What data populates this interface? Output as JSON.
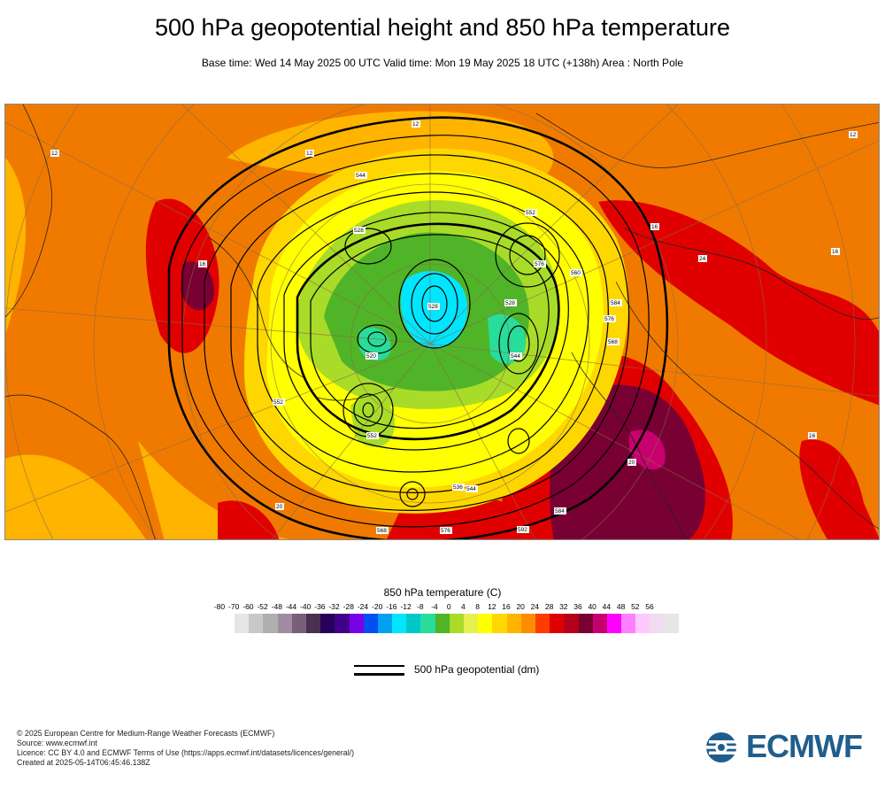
{
  "header": {
    "title": "500 hPa geopotential height and 850 hPa temperature",
    "subtitle": "Base time: Wed 14 May 2025 00 UTC Valid time: Mon 19 May 2025 18 UTC (+138h) Area : North Pole"
  },
  "map": {
    "projection": "polar stereographic",
    "area": "North Pole",
    "contour_labels": [
      "12",
      "12",
      "12",
      "544",
      "528",
      "552",
      "576",
      "528",
      "560",
      "528",
      "544",
      "552",
      "520",
      "576",
      "552",
      "536",
      "544",
      "16",
      "568",
      "16",
      "24",
      "16",
      "16",
      "568",
      "576",
      "592",
      "584",
      "20",
      "20",
      "584",
      "12"
    ]
  },
  "legend": {
    "temperature": {
      "title": "850 hPa temperature (C)",
      "labels": [
        "-80",
        "-70",
        "-60",
        "-52",
        "-48",
        "-44",
        "-40",
        "-36",
        "-32",
        "-28",
        "-24",
        "-20",
        "-16",
        "-12",
        "-8",
        "-4",
        "0",
        "4",
        "8",
        "12",
        "16",
        "20",
        "24",
        "28",
        "32",
        "36",
        "40",
        "44",
        "48",
        "52",
        "56"
      ],
      "colors": [
        "#e6e6e6",
        "#c8c8c8",
        "#afafaf",
        "#a08ca0",
        "#7a5f7a",
        "#4a3050",
        "#28005a",
        "#42008a",
        "#7a00e6",
        "#0050f0",
        "#00a0f0",
        "#00e6ff",
        "#00c8c8",
        "#28dc9a",
        "#50b428",
        "#a8dc28",
        "#e6f050",
        "#ffff00",
        "#ffd700",
        "#ffb400",
        "#ff8c00",
        "#ff3c00",
        "#e10000",
        "#b4001e",
        "#780032",
        "#c8006e",
        "#ff00ff",
        "#ff80ff",
        "#ffc8ff",
        "#f0dcf0",
        "#e6e6e6"
      ]
    },
    "geopotential": {
      "label": "500 hPa geopotential (dm)"
    }
  },
  "footer": {
    "copyright": "© 2025 European Centre for Medium-Range Weather Forecasts (ECMWF)",
    "source": "Source: www.ecmwf.int",
    "licence": "Licence: CC BY 4.0 and ECMWF Terms of Use (https://apps.ecmwf.int/datasets/licences/general/)",
    "created": "Created at 2025-05-14T06:45:46.138Z"
  },
  "logo": {
    "text": "ECMWF",
    "color": "#1f5e8c"
  }
}
